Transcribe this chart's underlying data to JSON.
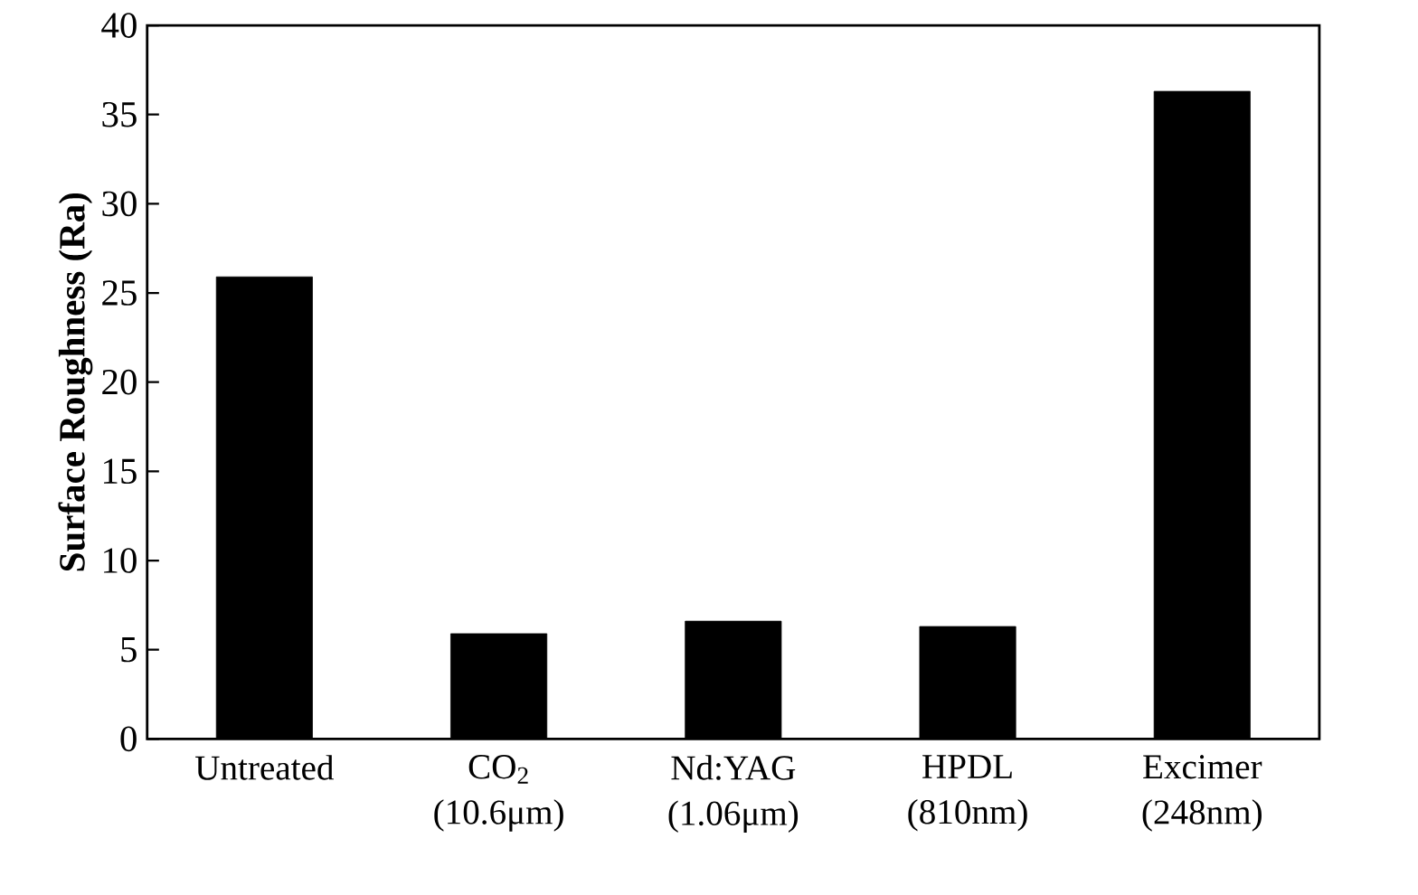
{
  "chart_data": {
    "type": "bar",
    "ylabel": "Surface Roughness (Ra)",
    "categories": [
      "Untreated",
      "CO$_{2}$ (10.6μm)",
      "Nd:YAG (1.06μm)",
      "HPDL (810nm)",
      "Excimer (248nm)"
    ],
    "values": [
      25.9,
      5.9,
      6.6,
      6.3,
      36.3
    ],
    "color": "#000000",
    "ylim": [
      0,
      40
    ],
    "yticks": [
      0,
      5,
      10,
      15,
      20,
      25,
      30,
      35,
      40
    ],
    "grid": false
  }
}
